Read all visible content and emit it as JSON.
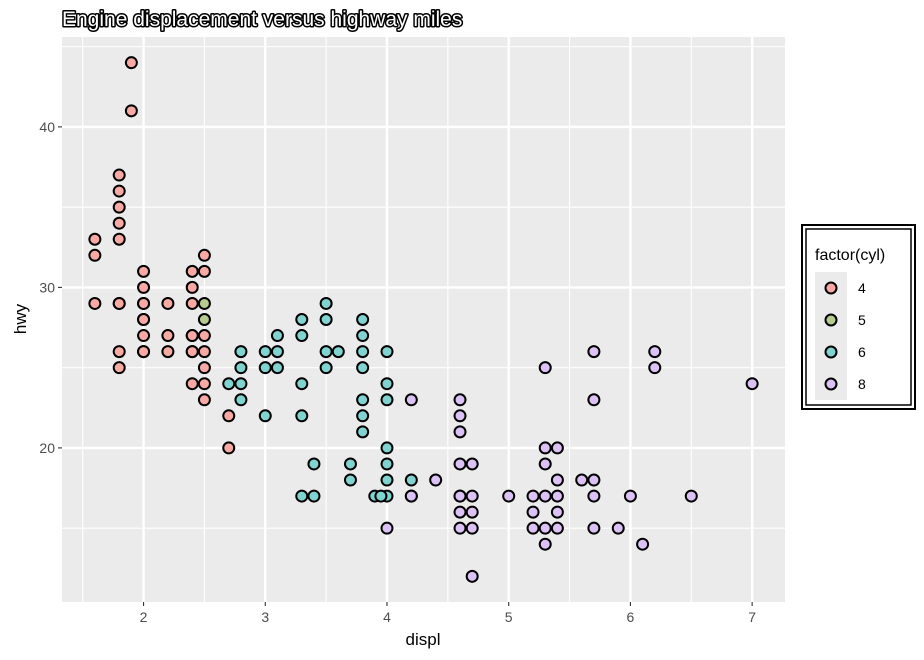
{
  "chart_data": {
    "type": "scatter",
    "title": "Engine displacement versus highway miles",
    "xlabel": "displ",
    "ylabel": "hwy",
    "xlim": [
      1.33,
      7.27
    ],
    "ylim": [
      10.4,
      45.6
    ],
    "x_ticks": [
      2,
      3,
      4,
      5,
      6,
      7
    ],
    "y_ticks": [
      20,
      30,
      40
    ],
    "grid": true,
    "legend": {
      "title": "factor(cyl)",
      "position": "right",
      "entries": [
        "4",
        "5",
        "6",
        "8"
      ]
    },
    "series": [
      {
        "name": "4",
        "color": "#F8A9A3",
        "points": [
          [
            1.8,
            29
          ],
          [
            1.8,
            29
          ],
          [
            2.0,
            31
          ],
          [
            2.0,
            30
          ],
          [
            1.8,
            26
          ],
          [
            1.8,
            25
          ],
          [
            2.0,
            28
          ],
          [
            2.0,
            27
          ],
          [
            2.0,
            29
          ],
          [
            2.4,
            27
          ],
          [
            2.4,
            30
          ],
          [
            2.4,
            26
          ],
          [
            2.4,
            29
          ],
          [
            2.4,
            24
          ],
          [
            1.8,
            36
          ],
          [
            1.8,
            37
          ],
          [
            1.8,
            35
          ],
          [
            1.9,
            44
          ],
          [
            1.9,
            41
          ],
          [
            2.0,
            29
          ],
          [
            2.0,
            26
          ],
          [
            2.0,
            28
          ],
          [
            2.2,
            29
          ],
          [
            2.2,
            27
          ],
          [
            2.5,
            31
          ],
          [
            2.5,
            32
          ],
          [
            2.4,
            27
          ],
          [
            2.4,
            26
          ],
          [
            2.4,
            31
          ],
          [
            2.5,
            25
          ],
          [
            2.5,
            24
          ],
          [
            2.5,
            23
          ],
          [
            2.7,
            20
          ],
          [
            2.7,
            22
          ],
          [
            1.6,
            33
          ],
          [
            1.6,
            32
          ],
          [
            1.6,
            29
          ],
          [
            1.8,
            34
          ],
          [
            1.8,
            33
          ],
          [
            2.0,
            26
          ],
          [
            2.2,
            26
          ],
          [
            2.5,
            26
          ],
          [
            2.5,
            27
          ]
        ]
      },
      {
        "name": "5",
        "color": "#B5CC8E",
        "points": [
          [
            2.5,
            29
          ],
          [
            2.5,
            28
          ]
        ]
      },
      {
        "name": "6",
        "color": "#7FD3D0",
        "points": [
          [
            2.8,
            26
          ],
          [
            2.8,
            25
          ],
          [
            3.1,
            27
          ],
          [
            3.1,
            25
          ],
          [
            2.8,
            24
          ],
          [
            3.0,
            26
          ],
          [
            3.0,
            25
          ],
          [
            3.1,
            26
          ],
          [
            3.3,
            28
          ],
          [
            3.3,
            27
          ],
          [
            3.5,
            29
          ],
          [
            3.5,
            28
          ],
          [
            3.5,
            26
          ],
          [
            3.5,
            25
          ],
          [
            3.6,
            26
          ],
          [
            3.8,
            28
          ],
          [
            3.8,
            27
          ],
          [
            3.8,
            26
          ],
          [
            3.8,
            25
          ],
          [
            3.8,
            23
          ],
          [
            3.8,
            22
          ],
          [
            3.8,
            21
          ],
          [
            4.0,
            26
          ],
          [
            4.0,
            24
          ],
          [
            4.0,
            23
          ],
          [
            4.0,
            20
          ],
          [
            4.0,
            19
          ],
          [
            4.0,
            18
          ],
          [
            4.0,
            17
          ],
          [
            4.2,
            18
          ],
          [
            4.2,
            17
          ],
          [
            3.3,
            24
          ],
          [
            3.3,
            22
          ],
          [
            3.0,
            22
          ],
          [
            2.7,
            24
          ],
          [
            2.8,
            23
          ],
          [
            3.3,
            17
          ],
          [
            3.4,
            17
          ],
          [
            3.4,
            19
          ],
          [
            3.7,
            19
          ],
          [
            3.7,
            18
          ],
          [
            3.9,
            17
          ],
          [
            3.95,
            17
          ]
        ]
      },
      {
        "name": "8",
        "color": "#DCC1F4",
        "points": [
          [
            5.7,
            26
          ],
          [
            5.7,
            23
          ],
          [
            6.2,
            26
          ],
          [
            6.2,
            25
          ],
          [
            7.0,
            24
          ],
          [
            5.3,
            25
          ],
          [
            5.3,
            20
          ],
          [
            5.4,
            20
          ],
          [
            5.3,
            19
          ],
          [
            4.2,
            23
          ],
          [
            4.6,
            23
          ],
          [
            4.6,
            22
          ],
          [
            4.6,
            21
          ],
          [
            4.6,
            19
          ],
          [
            4.7,
            19
          ],
          [
            4.4,
            18
          ],
          [
            4.7,
            17
          ],
          [
            4.6,
            17
          ],
          [
            5.0,
            17
          ],
          [
            5.2,
            17
          ],
          [
            5.4,
            17
          ],
          [
            5.3,
            17
          ],
          [
            5.7,
            17
          ],
          [
            6.5,
            17
          ],
          [
            4.7,
            16
          ],
          [
            5.2,
            16
          ],
          [
            5.4,
            16
          ],
          [
            4.6,
            16
          ],
          [
            4.6,
            15
          ],
          [
            4.7,
            15
          ],
          [
            5.2,
            15
          ],
          [
            5.3,
            15
          ],
          [
            5.4,
            15
          ],
          [
            5.7,
            15
          ],
          [
            5.9,
            15
          ],
          [
            5.3,
            14
          ],
          [
            6.1,
            14
          ],
          [
            4.7,
            12
          ],
          [
            5.6,
            18
          ],
          [
            5.7,
            18
          ],
          [
            5.4,
            18
          ],
          [
            6.0,
            17
          ],
          [
            4.0,
            15
          ],
          [
            4.2,
            17
          ],
          [
            4.6,
            17
          ]
        ]
      }
    ]
  }
}
